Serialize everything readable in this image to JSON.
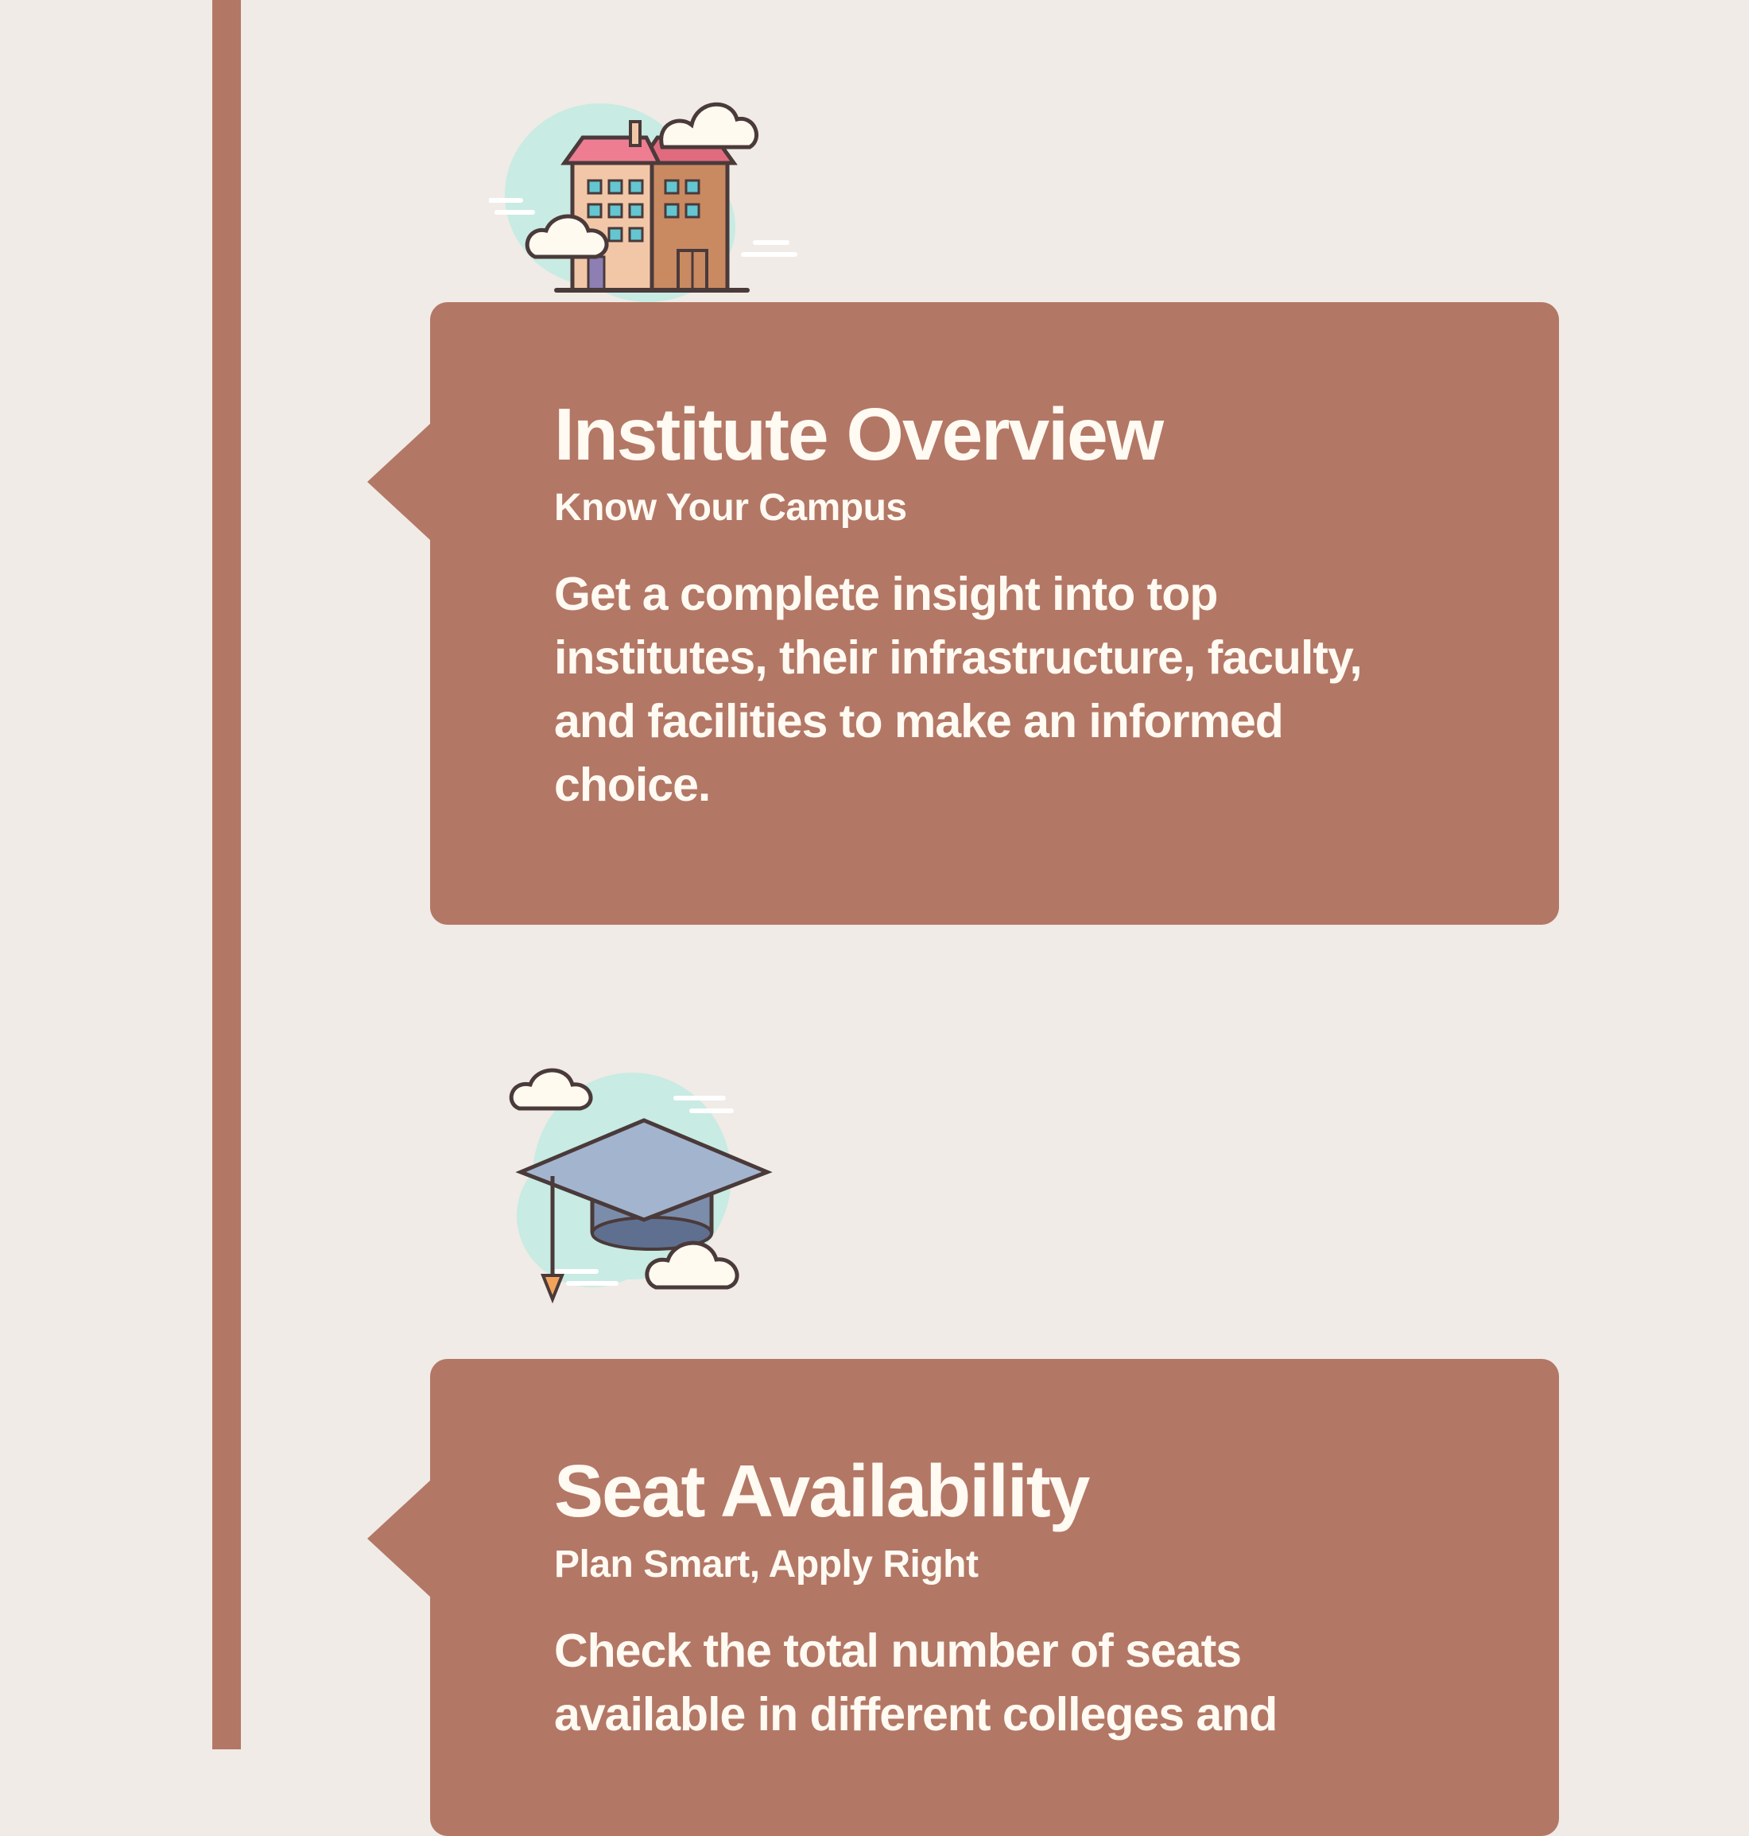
{
  "colors": {
    "background": "#f0ebe6",
    "accent": "#b37766",
    "card_text": "#fffaf2"
  },
  "timeline": {
    "items": [
      {
        "icon": "building-icon",
        "title": "Institute Overview",
        "subtitle": "Know Your Campus",
        "description": "Get a complete insight into top institutes, their infrastructure, faculty, and facilities to make an informed choice."
      },
      {
        "icon": "graduation-cap-icon",
        "title": "Seat Availability",
        "subtitle": "Plan Smart, Apply Right",
        "description": "Check the total number of seats available in different colleges and"
      }
    ]
  }
}
